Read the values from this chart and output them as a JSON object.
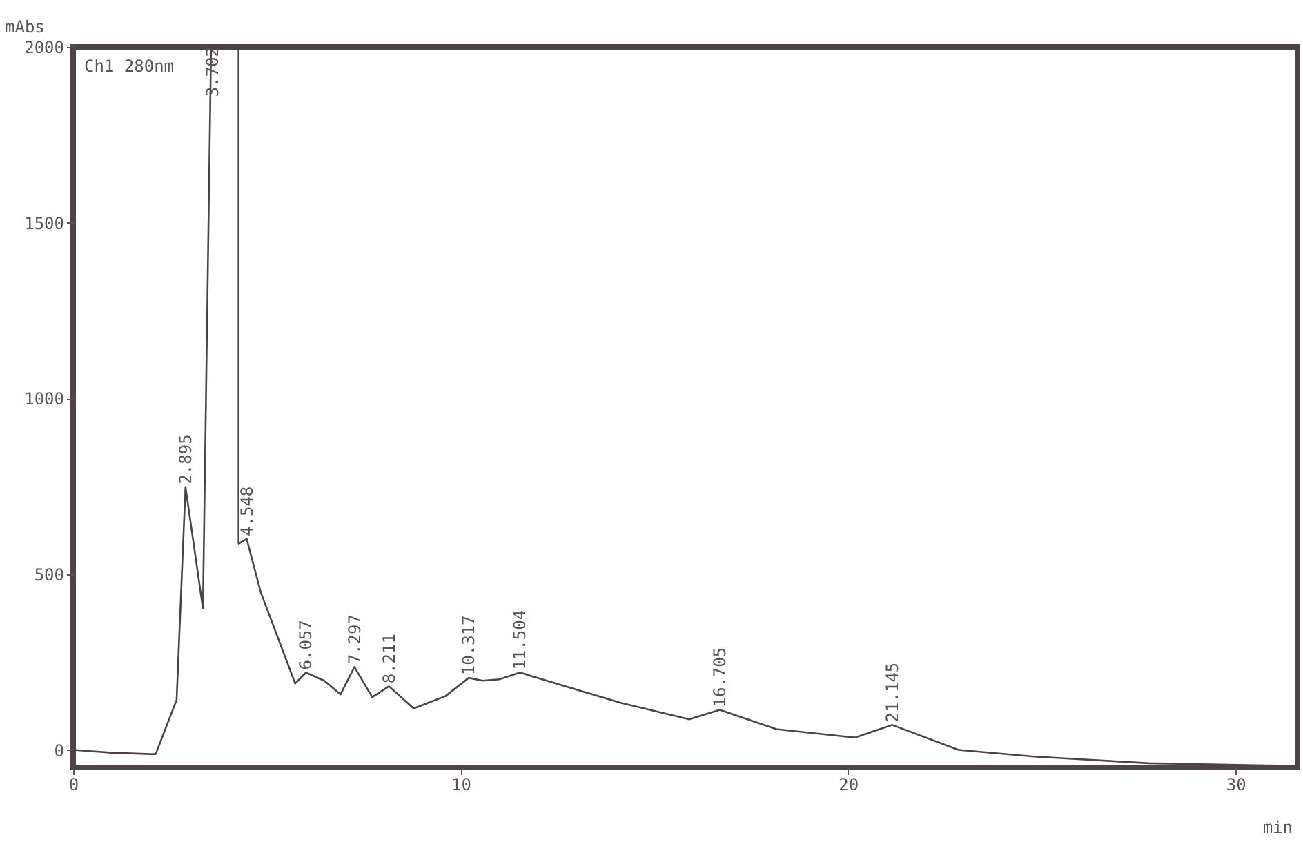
{
  "chart_data": {
    "type": "line",
    "xlabel": "min",
    "ylabel": "mAbs",
    "xlim": [
      0,
      31.6
    ],
    "ylim": [
      -50,
      2000
    ],
    "xticks": [
      0,
      10,
      20,
      30
    ],
    "yticks": [
      0,
      500,
      1000,
      1500,
      2000
    ],
    "grid": false,
    "marker": "none",
    "line_style": "solid",
    "x": [
      0,
      1,
      2,
      2.13,
      2.67,
      2.9,
      3.35,
      3.56,
      3.65,
      4.27,
      4.27,
      4.48,
      4.84,
      5.73,
      6.01,
      6.48,
      6.9,
      7.26,
      7.72,
      8.15,
      8.79,
      9.61,
      10.21,
      10.57,
      11.0,
      11.53,
      12.95,
      14.13,
      15.9,
      16.69,
      18.15,
      20.18,
      21.14,
      22.85,
      24.8,
      27.76,
      31.3
    ],
    "series": [
      {
        "color": "#4a4448",
        "values": [
          0,
          -8,
          -12,
          -12,
          142,
          748,
          402,
          2000,
          2000,
          2000,
          587,
          600,
          449,
          189,
          220,
          197,
          158,
          236,
          150,
          181,
          118,
          153,
          205,
          197,
          201,
          220,
          173,
          134,
          87,
          114,
          59,
          35,
          71,
          0,
          -19,
          -38,
          -45
        ]
      }
    ],
    "annotations": [
      "Ch1 280nm",
      {
        "text": "2.895",
        "x": 2.9,
        "y": 748
      },
      {
        "text": "3.702",
        "x": 3.6,
        "y": 2000
      },
      {
        "text": "4.548",
        "x": 4.48,
        "y": 600
      },
      {
        "text": "6.057",
        "x": 6.01,
        "y": 220
      },
      {
        "text": "7.297",
        "x": 7.26,
        "y": 236
      },
      {
        "text": "8.211",
        "x": 8.15,
        "y": 181
      },
      {
        "text": "10.317",
        "x": 10.21,
        "y": 205
      },
      {
        "text": "11.504",
        "x": 11.53,
        "y": 220
      },
      {
        "text": "16.705",
        "x": 16.69,
        "y": 114
      },
      {
        "text": "21.145",
        "x": 21.14,
        "y": 71
      }
    ]
  }
}
